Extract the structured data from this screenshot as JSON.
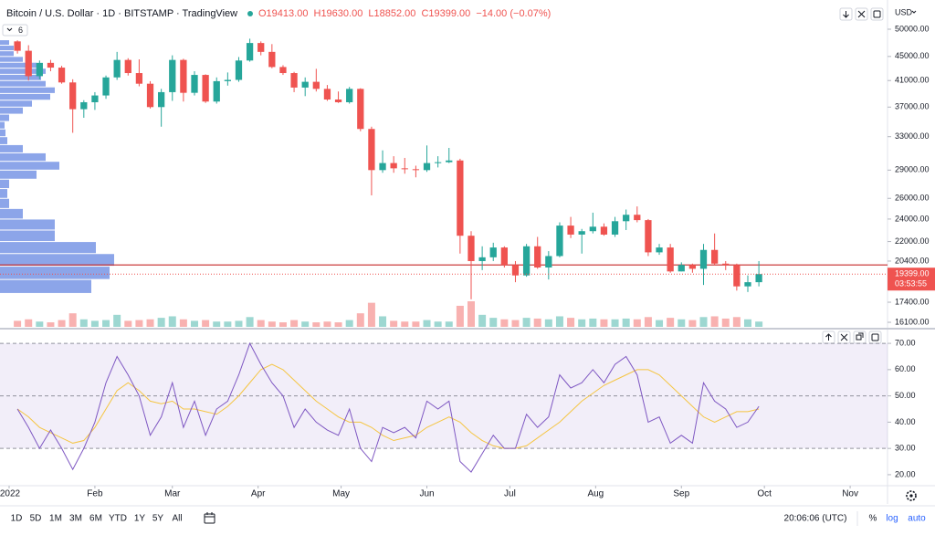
{
  "header": {
    "title": "Bitcoin / U.S. Dollar · 1D · BITSTAMP · TradingView",
    "ohlc": [
      "O19413.00",
      "H19630.00",
      "L18852.00",
      "C19399.00",
      "−14.00 (−0.07%)"
    ],
    "currency": "USD",
    "indicator_count": 6
  },
  "chart_data": [
    {
      "type": "candlestick",
      "x": [
        3,
        7,
        11,
        15,
        19,
        23,
        27,
        31,
        35,
        39,
        43,
        47,
        51,
        55,
        59,
        63,
        67,
        71,
        75,
        79,
        83,
        87,
        91,
        95,
        99,
        103,
        107,
        111,
        115,
        119,
        123,
        127,
        131,
        135,
        139,
        143,
        147,
        151,
        155,
        159,
        163,
        167,
        171,
        175,
        179,
        183,
        187,
        191,
        195,
        199,
        203,
        207,
        211,
        215,
        219,
        223,
        227,
        231,
        235,
        239,
        243,
        247,
        251,
        255,
        259,
        263,
        267,
        271
      ],
      "open": [
        47700,
        46000,
        41700,
        43900,
        43100,
        40700,
        36700,
        37700,
        38700,
        41500,
        44400,
        42200,
        40500,
        37000,
        39200,
        44400,
        39100,
        41900,
        37800,
        40900,
        41100,
        44300,
        47400,
        45800,
        43200,
        42200,
        39900,
        40800,
        39700,
        38100,
        37700,
        39700,
        34000,
        29000,
        29800,
        29200,
        29100,
        29000,
        29800,
        29900,
        30100,
        22500,
        20400,
        20700,
        21500,
        20100,
        19300,
        21600,
        19900,
        20800,
        23400,
        22600,
        22900,
        23300,
        22600,
        23800,
        24400,
        23900,
        21100,
        21500,
        19600,
        20100,
        19800,
        21300,
        20200,
        20100,
        18500,
        18800
      ],
      "high": [
        47900,
        47000,
        44300,
        44400,
        43400,
        41200,
        38000,
        39200,
        41800,
        45800,
        44700,
        44500,
        40900,
        39700,
        45200,
        44600,
        42500,
        42000,
        41500,
        42300,
        44900,
        48200,
        47700,
        47200,
        43500,
        42400,
        41500,
        42900,
        40300,
        39300,
        40000,
        39800,
        34300,
        31300,
        30600,
        30400,
        29500,
        31900,
        30600,
        31600,
        30300,
        22900,
        21600,
        21900,
        21600,
        20400,
        21800,
        22400,
        21200,
        23700,
        24200,
        23100,
        24600,
        23600,
        24200,
        24900,
        25200,
        24000,
        21800,
        21800,
        20300,
        20200,
        21800,
        22700,
        20400,
        20200,
        19300,
        20400
      ],
      "low": [
        45500,
        41000,
        41200,
        42500,
        40500,
        33500,
        35500,
        36600,
        38200,
        41100,
        41800,
        40100,
        36800,
        34300,
        37900,
        37800,
        38700,
        37600,
        37500,
        40200,
        40800,
        44100,
        45200,
        43000,
        41900,
        39200,
        38600,
        39300,
        37900,
        37600,
        37500,
        33700,
        26300,
        28700,
        28700,
        28600,
        28200,
        28800,
        29300,
        29800,
        21000,
        17600,
        19700,
        20400,
        19900,
        18800,
        19200,
        19800,
        19000,
        20700,
        22300,
        21000,
        22700,
        22500,
        22400,
        23000,
        23700,
        20800,
        20900,
        19500,
        19600,
        19500,
        18600,
        20100,
        19700,
        18200,
        18100,
        18500
      ],
      "close": [
        46000,
        41700,
        43900,
        43100,
        40700,
        36700,
        37700,
        38700,
        41500,
        44400,
        42200,
        40500,
        37000,
        39200,
        44400,
        39100,
        41900,
        37800,
        40900,
        41100,
        44300,
        47400,
        45800,
        43200,
        42200,
        39900,
        40800,
        39700,
        38100,
        37700,
        39700,
        34000,
        29000,
        29800,
        29200,
        29100,
        29000,
        29800,
        29900,
        30100,
        22500,
        20400,
        20700,
        21500,
        20100,
        19300,
        21600,
        19900,
        20800,
        23400,
        22600,
        22900,
        23300,
        22600,
        23800,
        24400,
        23900,
        21100,
        21500,
        19600,
        20100,
        19800,
        21300,
        20200,
        20100,
        18500,
        18800,
        19399
      ],
      "volume": [
        4000,
        5000,
        3500,
        3000,
        4500,
        9000,
        5000,
        4000,
        4500,
        8000,
        4000,
        4500,
        5000,
        6000,
        7000,
        5000,
        4000,
        4500,
        3500,
        3500,
        4000,
        6500,
        4500,
        3500,
        3000,
        4500,
        3500,
        3000,
        3500,
        3000,
        4500,
        9000,
        16000,
        7000,
        4000,
        3500,
        3500,
        4500,
        3500,
        3500,
        14000,
        17000,
        8000,
        6000,
        5000,
        4500,
        6000,
        5500,
        5000,
        7000,
        6000,
        5000,
        5500,
        5000,
        5000,
        5500,
        5000,
        6500,
        4500,
        6000,
        5000,
        4500,
        6500,
        7000,
        5500,
        6500,
        5000,
        3500
      ],
      "up_color": "#26a69a",
      "down_color": "#ef5350",
      "log_scale": true,
      "ylim": [
        15820,
        51250
      ],
      "yticks": [
        {
          "value": 50000,
          "label": "50000.00"
        },
        {
          "value": 45000,
          "label": "45000.00"
        },
        {
          "value": 41000,
          "label": "41000.00"
        },
        {
          "value": 37000,
          "label": "37000.00"
        },
        {
          "value": 33000,
          "label": "33000.00"
        },
        {
          "value": 29000,
          "label": "29000.00"
        },
        {
          "value": 26000,
          "label": "26000.00"
        },
        {
          "value": 24000,
          "label": "24000.00"
        },
        {
          "value": 22000,
          "label": "22000.00"
        },
        {
          "value": 20400,
          "label": "20400.00"
        },
        {
          "value": 17400,
          "label": "17400.00"
        },
        {
          "value": 16100,
          "label": "16100.00"
        }
      ],
      "xlim": [
        -3.3,
        317.5
      ],
      "xticks": [
        {
          "value": 0,
          "label": "2022"
        },
        {
          "value": 31,
          "label": "Feb"
        },
        {
          "value": 59,
          "label": "Mar"
        },
        {
          "value": 90,
          "label": "Apr"
        },
        {
          "value": 120,
          "label": "May"
        },
        {
          "value": 151,
          "label": "Jun"
        },
        {
          "value": 181,
          "label": "Jul"
        },
        {
          "value": 212,
          "label": "Aug"
        },
        {
          "value": 243,
          "label": "Sep"
        },
        {
          "value": 273,
          "label": "Oct"
        },
        {
          "value": 304,
          "label": "Nov"
        }
      ],
      "volume_profile": {
        "bins": [
          18000,
          19000,
          20000,
          21000,
          22000,
          23000,
          24000,
          25000,
          26000,
          27000,
          28000,
          29000,
          30000,
          31000,
          32000,
          33000,
          34000,
          35000,
          36000,
          37000,
          38000,
          39000,
          40000,
          41000,
          42000,
          43000,
          44000,
          45000,
          46000,
          47000,
          48000
        ],
        "values": [
          100,
          120,
          125,
          105,
          60,
          60,
          25,
          10,
          8,
          10,
          40,
          65,
          50,
          25,
          8,
          6,
          5,
          10,
          25,
          35,
          55,
          60,
          50,
          45,
          50,
          40,
          25,
          15,
          15,
          10
        ],
        "color": "#5b7fe0"
      },
      "hline": 20100,
      "hline_color": "#c62828",
      "last_price": {
        "value": 19399,
        "label": "19399.00"
      },
      "countdown": "03:53:55"
    },
    {
      "type": "line",
      "x": [
        3,
        7,
        11,
        15,
        19,
        23,
        27,
        31,
        35,
        39,
        43,
        47,
        51,
        55,
        59,
        63,
        67,
        71,
        75,
        79,
        83,
        87,
        91,
        95,
        99,
        103,
        107,
        111,
        115,
        119,
        123,
        127,
        131,
        135,
        139,
        143,
        147,
        151,
        155,
        159,
        163,
        167,
        171,
        175,
        179,
        183,
        187,
        191,
        195,
        199,
        203,
        207,
        211,
        215,
        219,
        223,
        227,
        231,
        235,
        239,
        243,
        247,
        251,
        255,
        259,
        263,
        267,
        271
      ],
      "series": [
        {
          "color": "#7e57c2",
          "values": [
            45,
            38,
            30,
            37,
            30,
            22,
            30,
            40,
            55,
            65,
            58,
            50,
            35,
            42,
            55,
            38,
            48,
            35,
            45,
            48,
            58,
            70,
            62,
            55,
            50,
            38,
            45,
            40,
            37,
            35,
            45,
            30,
            25,
            38,
            36,
            38,
            34,
            48,
            45,
            48,
            25,
            21,
            28,
            35,
            30,
            30,
            43,
            38,
            42,
            58,
            53,
            55,
            60,
            55,
            62,
            65,
            58,
            40,
            42,
            32,
            35,
            32,
            55,
            48,
            45,
            38,
            40,
            46
          ]
        },
        {
          "color": "#f5c542",
          "values": [
            45,
            42,
            38,
            36,
            34,
            32,
            33,
            38,
            45,
            52,
            55,
            52,
            48,
            47,
            48,
            45,
            45,
            44,
            43,
            46,
            50,
            55,
            60,
            62,
            60,
            56,
            52,
            48,
            45,
            42,
            40,
            40,
            38,
            35,
            33,
            34,
            35,
            38,
            40,
            42,
            40,
            36,
            33,
            31,
            30,
            30,
            31,
            34,
            37,
            40,
            44,
            48,
            51,
            54,
            56,
            58,
            60,
            60,
            58,
            54,
            50,
            46,
            42,
            40,
            42,
            44,
            44,
            45
          ]
        }
      ],
      "ylim": [
        16.5,
        74.9
      ],
      "yticks": [
        {
          "value": 70,
          "label": "70.00"
        },
        {
          "value": 60,
          "label": "60.00"
        },
        {
          "value": 50,
          "label": "50.00"
        },
        {
          "value": 40,
          "label": "40.00"
        },
        {
          "value": 30,
          "label": "30.00"
        },
        {
          "value": 20,
          "label": "20.00"
        }
      ],
      "levels": [
        30,
        50,
        70
      ],
      "band_color": "#7e57c2"
    }
  ],
  "toolbar": {
    "ranges": [
      "1D",
      "5D",
      "1M",
      "3M",
      "6M",
      "YTD",
      "1Y",
      "5Y",
      "All"
    ],
    "clock": "20:06:06 (UTC)",
    "scale_buttons": [
      "%",
      "log",
      "auto"
    ]
  }
}
